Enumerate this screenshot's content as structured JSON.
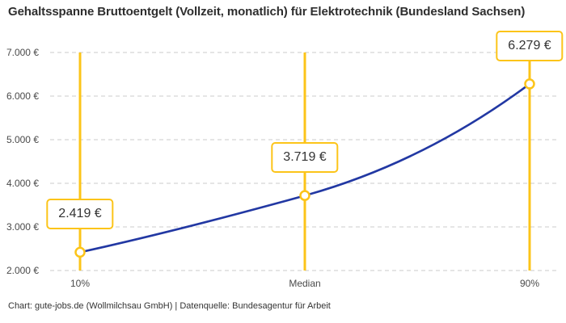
{
  "page": {
    "title": "Gehaltsspanne Bruttoentgelt (Vollzeit, monatlich) für Elektrotechnik (Bundesland Sachsen)",
    "footer": "Chart: gute-jobs.de (Wollmilchsau GmbH) | Datenquelle: Bundesagentur für Arbeit"
  },
  "colors": {
    "accent_yellow": "#FCC419",
    "curve_blue": "#2238A3",
    "gridline_gray": "#CBCBCB",
    "title_text": "#2E2E2E",
    "axis_text": "#4A4A4A",
    "label_text": "#333333",
    "footer_text": "#333333",
    "marker_fill": "#FFFFFF"
  },
  "chart_data": {
    "type": "line",
    "title": "Gehaltsspanne Bruttoentgelt (Vollzeit, monatlich) für Elektrotechnik (Bundesland Sachsen)",
    "categories": [
      "10%",
      "Median",
      "90%"
    ],
    "values": [
      2419,
      3719,
      6279
    ],
    "value_labels": [
      "2.419 €",
      "3.719 €",
      "6.279 €"
    ],
    "ylim": [
      2000,
      7000
    ],
    "y_tick_step": 1000,
    "y_tick_labels": [
      "2.000 €",
      "3.000 €",
      "4.000 €",
      "5.000 €",
      "6.000 €",
      "7.000 €"
    ],
    "grid": "horizontal-dashed",
    "legend": "none",
    "markers": "open-circle on vertical accent rules at each percentile",
    "annotations": "each data point labeled with boxed value above the marker",
    "source": "Chart: gute-jobs.de (Wollmilchsau GmbH) | Datenquelle: Bundesagentur für Arbeit"
  }
}
